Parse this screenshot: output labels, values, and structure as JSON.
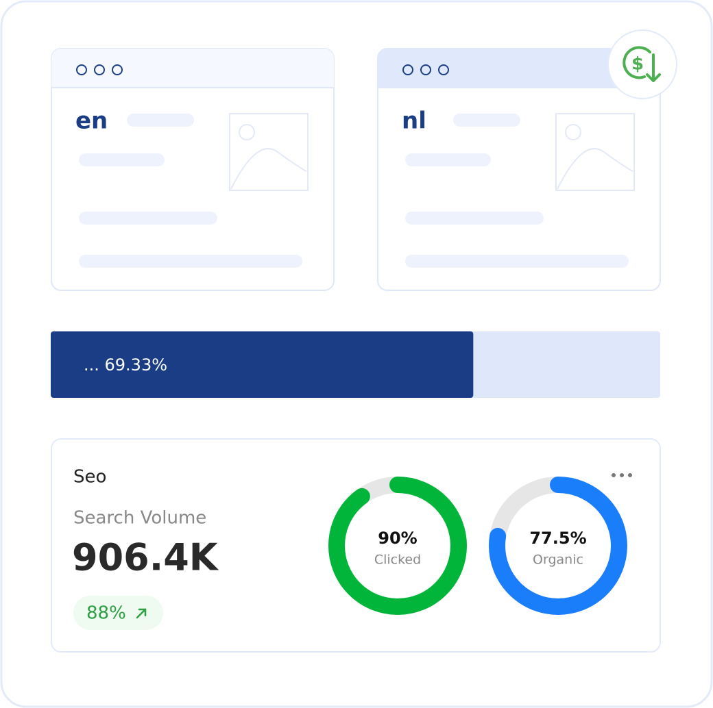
{
  "windows": [
    {
      "label": "en"
    },
    {
      "label": "nl"
    }
  ],
  "progress": {
    "label": "... 69.33%",
    "value": 69.33
  },
  "seo": {
    "title": "Seo",
    "metric_label": "Search Volume",
    "metric_value": "906.4K",
    "change": "88%",
    "donuts": [
      {
        "value": 90,
        "value_label": "90%",
        "label": "Clicked",
        "color": "#00b53a"
      },
      {
        "value": 77.5,
        "value_label": "77.5%",
        "label": "Organic",
        "color": "#1a7efb"
      }
    ]
  }
}
